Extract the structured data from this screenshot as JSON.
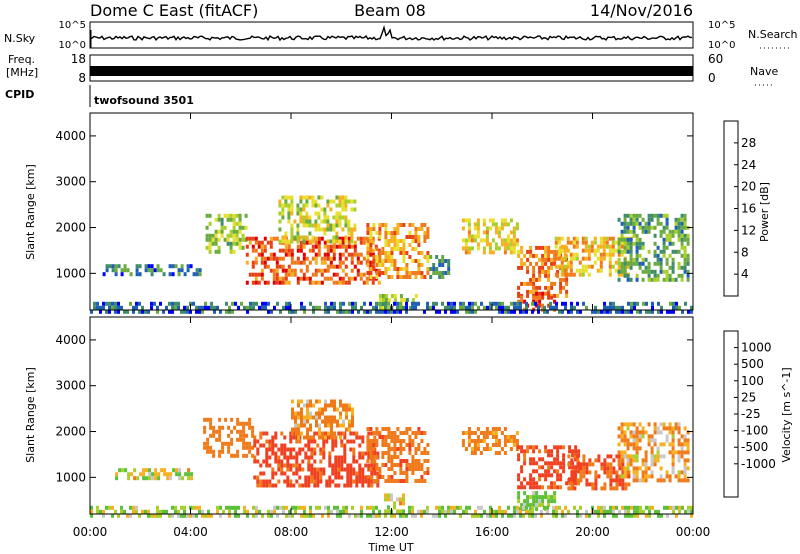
{
  "header": {
    "radar": "Dome C East (fitACF)",
    "beam": "Beam 08",
    "date": "14/Nov/2016"
  },
  "noise_panel": {
    "left_label": "N.Sky",
    "right_label": "N.Search",
    "left_ticks": [
      "10^5",
      "10^0"
    ],
    "right_ticks": [
      "10^5",
      "10^0"
    ]
  },
  "freq_panel": {
    "left_label_line1": "Freq.",
    "left_label_line2": "[MHz]",
    "left_ticks": [
      "18",
      "8"
    ],
    "right_label": "Nave",
    "right_ticks": [
      "60",
      "0"
    ]
  },
  "cpid": {
    "label": "CPID",
    "value": "twofsound 3501"
  },
  "x_axis": {
    "title": "Time UT",
    "ticks": [
      "00:00",
      "04:00",
      "08:00",
      "12:00",
      "16:00",
      "20:00",
      "00:00"
    ]
  },
  "colors": {
    "noise_trace": "#000000",
    "freq_trace": "#000000",
    "power_scale": [
      "#0000ff",
      "#1f5fb5",
      "#3e8c6a",
      "#6aab3f",
      "#a8cf2a",
      "#e8e030",
      "#f6b020",
      "#f07a1a",
      "#e84015",
      "#e00000"
    ],
    "velocity_scale": [
      "#e00000",
      "#f04020",
      "#f07a1a",
      "#f6b020",
      "#c8c8c8",
      "#a8cf2a",
      "#5cc03a",
      "#3e8c6a",
      "#1f5fb5",
      "#1c3fae"
    ]
  },
  "chart_data": [
    {
      "type": "heatmap",
      "name": "power",
      "ylabel": "Slant Range [km]",
      "xlabel": "",
      "ylim": [
        200,
        4500
      ],
      "xlim_hours": [
        0,
        24
      ],
      "y_ticks": [
        "1000",
        "2000",
        "3000",
        "4000"
      ],
      "colorbar_label": "Power [dB]",
      "colorbar_ticks": [
        "4",
        "8",
        "12",
        "16",
        "20",
        "24",
        "28"
      ],
      "colorbar_range": [
        0,
        32
      ],
      "regions": [
        {
          "t0": 0.5,
          "t1": 4.5,
          "r0": 950,
          "r1": 1200,
          "value": 7
        },
        {
          "t0": 4.6,
          "t1": 6.2,
          "r0": 1500,
          "r1": 2300,
          "value": 14
        },
        {
          "t0": 6.2,
          "t1": 11.5,
          "r0": 800,
          "r1": 1800,
          "value": 26
        },
        {
          "t0": 7.5,
          "t1": 10.5,
          "r0": 1700,
          "r1": 2700,
          "value": 16
        },
        {
          "t0": 11.0,
          "t1": 13.5,
          "r0": 900,
          "r1": 2100,
          "value": 22
        },
        {
          "t0": 13.5,
          "t1": 14.3,
          "r0": 900,
          "r1": 1400,
          "value": 8
        },
        {
          "t0": 14.8,
          "t1": 17.0,
          "r0": 1500,
          "r1": 2200,
          "value": 18
        },
        {
          "t0": 17.0,
          "t1": 19.0,
          "r0": 500,
          "r1": 1600,
          "value": 24
        },
        {
          "t0": 18.5,
          "t1": 21.5,
          "r0": 1000,
          "r1": 1800,
          "value": 20
        },
        {
          "t0": 21.0,
          "t1": 23.8,
          "r0": 900,
          "r1": 2300,
          "value": 10
        },
        {
          "t0": 11.5,
          "t1": 13.0,
          "r0": 250,
          "r1": 550,
          "value": 14
        },
        {
          "t0": 17.0,
          "t1": 18.5,
          "r0": 250,
          "r1": 600,
          "value": 28
        },
        {
          "t0": 0.0,
          "t1": 24.0,
          "r0": 200,
          "r1": 380,
          "value": 6
        }
      ]
    },
    {
      "type": "heatmap",
      "name": "velocity",
      "ylabel": "Slant Range [km]",
      "xlabel": "Time UT",
      "ylim": [
        200,
        4500
      ],
      "xlim_hours": [
        0,
        24
      ],
      "y_ticks": [
        "1000",
        "2000",
        "3000",
        "4000"
      ],
      "colorbar_label": "Velocity [m s^-1]",
      "colorbar_ticks": [
        "1000",
        "500",
        "100",
        "25",
        "-25",
        "-100",
        "-500",
        "-1000"
      ],
      "regions": [
        {
          "t0": 1.0,
          "t1": 4.0,
          "r0": 1000,
          "r1": 1200,
          "value": 25
        },
        {
          "t0": 4.5,
          "t1": 6.5,
          "r0": 1500,
          "r1": 2300,
          "value": -300
        },
        {
          "t0": 6.5,
          "t1": 11.5,
          "r0": 800,
          "r1": 2000,
          "value": -600
        },
        {
          "t0": 8.0,
          "t1": 10.5,
          "r0": 1900,
          "r1": 2700,
          "value": -150
        },
        {
          "t0": 11.0,
          "t1": 13.5,
          "r0": 900,
          "r1": 2100,
          "value": -400
        },
        {
          "t0": 14.8,
          "t1": 17.0,
          "r0": 1500,
          "r1": 2100,
          "value": -200
        },
        {
          "t0": 17.0,
          "t1": 19.5,
          "r0": 800,
          "r1": 1700,
          "value": -600
        },
        {
          "t0": 19.0,
          "t1": 21.5,
          "r0": 800,
          "r1": 1500,
          "value": -500
        },
        {
          "t0": 21.0,
          "t1": 23.8,
          "r0": 900,
          "r1": 2200,
          "value": -100
        },
        {
          "t0": 11.7,
          "t1": 12.5,
          "r0": 250,
          "r1": 650,
          "value": 0
        },
        {
          "t0": 17.0,
          "t1": 18.5,
          "r0": 300,
          "r1": 700,
          "value": 150
        },
        {
          "t0": 0.0,
          "t1": 24.0,
          "r0": 200,
          "r1": 380,
          "value": 60
        }
      ]
    }
  ]
}
